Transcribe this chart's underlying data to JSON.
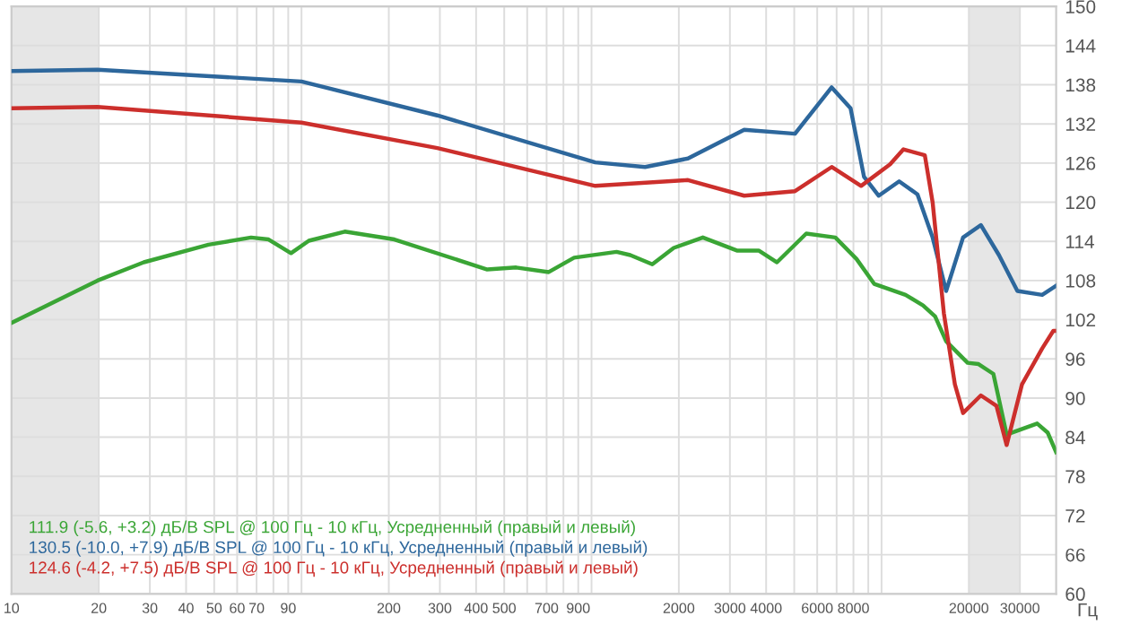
{
  "chart_data": {
    "type": "line",
    "xlabel": "Гц",
    "log": "x",
    "grid": true,
    "legend": "bottom left",
    "line_style": "solid",
    "marker": "none",
    "xlim": [
      10,
      40000
    ],
    "xticks": [
      10,
      20,
      30,
      40,
      50,
      60,
      70,
      {
        "value": 80,
        "label": null
      },
      90,
      {
        "value": 100,
        "label": null
      },
      200,
      300,
      400,
      500,
      {
        "value": 600,
        "label": null
      },
      700,
      {
        "value": 800,
        "label": null
      },
      900,
      {
        "value": 1000,
        "label": null
      },
      2000,
      3000,
      4000,
      {
        "value": 5000,
        "label": null
      },
      6000,
      {
        "value": 7000,
        "label": null
      },
      8000,
      {
        "value": 9000,
        "label": null
      },
      {
        "value": 10000,
        "label": null
      },
      20000,
      30000
    ],
    "ylim": [
      60,
      150
    ],
    "yticks": [
      60,
      66,
      72,
      78,
      84,
      90,
      96,
      102,
      108,
      114,
      120,
      126,
      132,
      138,
      144,
      150
    ],
    "bands": [
      {
        "axis": "x",
        "from": 10,
        "to": 20,
        "color": "#e6e6e6"
      },
      {
        "axis": "x",
        "from": 20000,
        "to": 30000,
        "color": "#e6e6e6"
      }
    ],
    "series": [
      {
        "name": "111.9 (-5.6, +3.2) дБ/В SPL @ 100 Гц - 10 кГц, Усредненный (правый и левый)",
        "color": "#3aa535",
        "x": [
          10,
          19.8,
          28.6,
          47.8,
          67,
          77,
          92,
          106,
          141,
          209,
          437,
          550,
          712,
          871,
          1220,
          1360,
          1620,
          1920,
          2420,
          3170,
          3770,
          4360,
          5500,
          6930,
          8200,
          9430,
          12100,
          13900,
          15300,
          16700,
          19800,
          21600,
          24300,
          27000,
          34400,
          37400,
          40000
        ],
        "values": [
          101.5,
          108.0,
          110.8,
          113.5,
          114.6,
          114.3,
          112.2,
          114.1,
          115.5,
          114.3,
          109.7,
          110.0,
          109.3,
          111.5,
          112.4,
          111.9,
          110.5,
          113.0,
          114.6,
          112.6,
          112.6,
          110.8,
          115.2,
          114.6,
          111.3,
          107.5,
          105.8,
          104.2,
          102.5,
          98.7,
          95.4,
          95.2,
          93.7,
          84.4,
          86.1,
          84.7,
          81.7
        ]
      },
      {
        "name": "130.5 (-10.0, +7.9) дБ/В SPL @ 100 Гц - 10 кГц, Усредненный (правый и левый)",
        "color": "#2d679c",
        "x": [
          10,
          19.8,
          100,
          294,
          1030,
          1530,
          2150,
          3360,
          5030,
          6730,
          7820,
          8700,
          9780,
          11500,
          13300,
          15000,
          16700,
          19100,
          22000,
          25400,
          29400,
          35800,
          40000
        ],
        "values": [
          140.1,
          140.3,
          138.5,
          133.3,
          126.1,
          125.4,
          126.7,
          131.1,
          130.5,
          137.6,
          134.4,
          123.9,
          121.0,
          123.2,
          121.2,
          114.6,
          106.4,
          114.6,
          116.5,
          111.9,
          106.4,
          105.8,
          107.2
        ]
      },
      {
        "name": "124.6 (-4.2, +7.5) дБ/В SPL @ 100 Гц - 10 кГц, Усредненный (правый и левый)",
        "color": "#cc2f2c",
        "x": [
          10,
          19.8,
          100,
          294,
          1030,
          2150,
          3360,
          5030,
          6730,
          8500,
          10700,
          11900,
          14100,
          15000,
          16400,
          17900,
          19100,
          22000,
          24900,
          27000,
          30500,
          35800,
          39100,
          40000
        ],
        "values": [
          134.4,
          134.6,
          132.2,
          128.3,
          122.5,
          123.4,
          121.0,
          121.7,
          125.4,
          122.5,
          125.8,
          128.1,
          127.2,
          120.0,
          103.0,
          92.1,
          87.7,
          90.4,
          88.8,
          82.8,
          92.1,
          97.6,
          100.3,
          100.3
        ]
      }
    ]
  }
}
